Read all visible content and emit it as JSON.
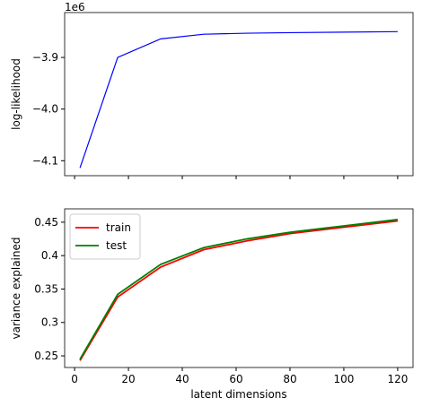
{
  "chart_data": [
    {
      "type": "line",
      "y_label": "log-likelihood",
      "y_offset": "1e6",
      "x": [
        2,
        16,
        32,
        48,
        64,
        80,
        120
      ],
      "series": [
        {
          "name": "log-likelihood",
          "color": "#0000ff",
          "values": [
            -4.114,
            -3.9,
            -3.864,
            -3.855,
            -3.853,
            -3.852,
            -3.85
          ]
        }
      ],
      "xlim": [
        -3.7,
        125.7
      ],
      "ylim": [
        -4.129,
        -3.813
      ],
      "yticks": [
        {
          "value": -3.9,
          "label": "−3.9"
        },
        {
          "value": -4.0,
          "label": "−4.0"
        },
        {
          "value": -4.1,
          "label": "−4.1"
        }
      ]
    },
    {
      "type": "line",
      "x_label": "latent dimensions",
      "y_label": "variance explained",
      "x": [
        2,
        16,
        32,
        48,
        64,
        80,
        120
      ],
      "series": [
        {
          "name": "train",
          "color": "#ff0000",
          "values": [
            0.243,
            0.338,
            0.383,
            0.409,
            0.422,
            0.433,
            0.452
          ]
        },
        {
          "name": "test",
          "color": "#008000",
          "values": [
            0.245,
            0.342,
            0.387,
            0.412,
            0.425,
            0.435,
            0.454
          ]
        }
      ],
      "xlim": [
        -3.7,
        125.7
      ],
      "ylim": [
        0.2326,
        0.47
      ],
      "xticks": [
        0,
        20,
        40,
        60,
        80,
        100,
        120
      ],
      "yticks": [
        0.25,
        0.3,
        0.35,
        0.4,
        0.45
      ],
      "legend": "upper left"
    }
  ]
}
